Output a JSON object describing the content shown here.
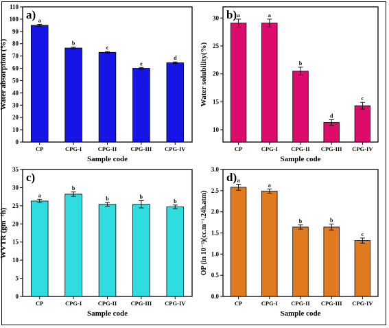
{
  "chart_data": [
    {
      "type": "bar",
      "panel_label": "a)",
      "categories": [
        "CP",
        "CPG-I",
        "CPG-II",
        "CPG-III",
        "CPG-IV"
      ],
      "values": [
        95,
        76.5,
        73,
        60,
        64.5
      ],
      "errors": [
        0.8,
        0.7,
        0.7,
        0.7,
        0.7
      ],
      "letters": [
        "a",
        "b",
        "c",
        "e",
        "d"
      ],
      "ylim": [
        0,
        110
      ],
      "yticks": [
        0,
        10,
        20,
        30,
        40,
        50,
        60,
        70,
        80,
        90,
        100,
        110
      ],
      "ylabel": "Water absorption (%)",
      "xlabel": "Sample code",
      "color": "#1515e6",
      "grid": false
    },
    {
      "type": "bar",
      "panel_label": "b)",
      "categories": [
        "CP",
        "CPG-I",
        "CPG-II",
        "CPG-III",
        "CPG-IV"
      ],
      "values": [
        29.1,
        29.1,
        20.5,
        11.3,
        14.3
      ],
      "errors": [
        0.7,
        0.7,
        0.7,
        0.5,
        0.6
      ],
      "letters": [
        "a",
        "a",
        "b",
        "d",
        "c"
      ],
      "ylim": [
        7.8,
        32
      ],
      "yticks": [
        10,
        15,
        20,
        25,
        30
      ],
      "ylabel": "Water solubility(%)",
      "xlabel": "Sample code",
      "color": "#dd0c6c",
      "grid": false
    },
    {
      "type": "bar",
      "panel_label": "c)",
      "categories": [
        "CP",
        "CPG-I",
        "CPG-II",
        "CPG-III",
        "CPG-IV"
      ],
      "values": [
        26.3,
        28.2,
        25.4,
        25.4,
        24.7
      ],
      "errors": [
        0.5,
        0.6,
        0.5,
        1.0,
        0.5
      ],
      "letters": [
        "a",
        "b",
        "b",
        "b",
        "b"
      ],
      "ylim": [
        0,
        35
      ],
      "yticks": [
        0,
        5,
        10,
        15,
        20,
        25,
        30,
        35
      ],
      "ylabel": "WVTR (gm⁻²h)",
      "xlabel": "Sample code",
      "color": "#2fdde0",
      "grid": false
    },
    {
      "type": "bar",
      "panel_label": "d)",
      "categories": [
        "CP",
        "CPG-I",
        "CPG-II",
        "CPG-III",
        "CPG-IV"
      ],
      "values": [
        2.58,
        2.49,
        1.64,
        1.64,
        1.32
      ],
      "errors": [
        0.07,
        0.05,
        0.05,
        0.07,
        0.06
      ],
      "letters": [
        "a",
        "a",
        "b",
        "b",
        "c"
      ],
      "ylim": [
        0,
        3.0
      ],
      "yticks": [
        0.0,
        0.5,
        1.0,
        1.5,
        2.0,
        2.5,
        3.0
      ],
      "ylabel": "OP (in 10⁻⁵)(cc.m⁻¹.24h.atm)",
      "xlabel": "Sample code",
      "color": "#e07a1e",
      "grid": false
    }
  ]
}
